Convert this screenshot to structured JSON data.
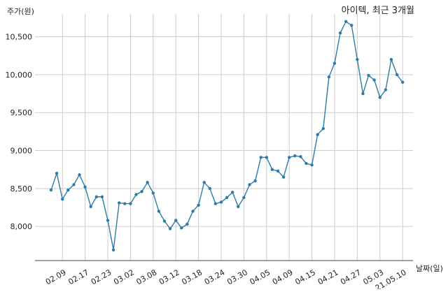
{
  "chart_data": {
    "type": "line",
    "title": "아이텍, 최근 3개월",
    "ylabel": "주가(원)",
    "xlabel": "날짜(일)",
    "ylim": [
      7550,
      10800
    ],
    "yticks": [
      8000,
      8500,
      9000,
      9500,
      10000,
      10500
    ],
    "ytick_labels": [
      "8,000",
      "8,500",
      "9,000",
      "9,500",
      "10,000",
      "10,500"
    ],
    "xtick_labels": [
      "02.09",
      "02.17",
      "02.23",
      "03.02",
      "03.08",
      "03.12",
      "03.18",
      "03.24",
      "03.30",
      "04.05",
      "04.09",
      "04.15",
      "04.21",
      "04.27",
      "05.03",
      "21.05.10"
    ],
    "xtick_indices": [
      2,
      6,
      10,
      14,
      18,
      22,
      26,
      30,
      34,
      38,
      42,
      46,
      50,
      54,
      58,
      62
    ],
    "grid": true,
    "line_color": "#2e7ca6",
    "series": [
      {
        "values": [
          8480,
          8700,
          8360,
          8480,
          8550,
          8680,
          8520,
          8260,
          8390,
          8390,
          8080,
          7690,
          8310,
          8300,
          8300,
          8420,
          8460,
          8580,
          8440,
          8200,
          8070,
          7970,
          8080,
          7980,
          8030,
          8200,
          8280,
          8580,
          8500,
          8300,
          8320,
          8380,
          8450,
          8260,
          8380,
          8550,
          8600,
          8910,
          8910,
          8750,
          8730,
          8650,
          8910,
          8930,
          8920,
          8830,
          8810,
          9210,
          9290,
          9970,
          10150,
          10550,
          10700,
          10650,
          10200,
          9750,
          9990,
          9930,
          9700,
          9800,
          10200,
          10000,
          9900
        ]
      }
    ]
  }
}
